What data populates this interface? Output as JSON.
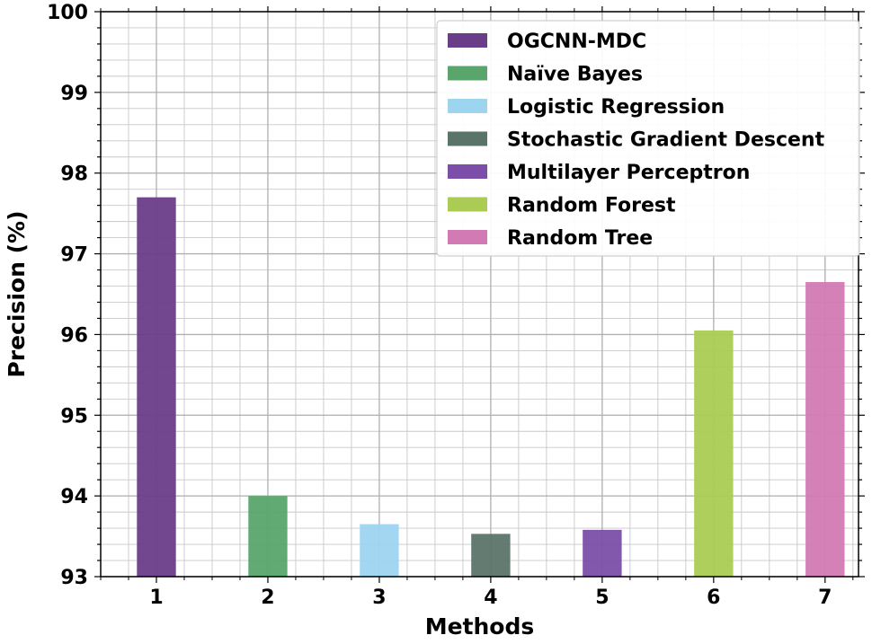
{
  "chart_data": {
    "type": "bar",
    "title": "",
    "xlabel": "Methods",
    "ylabel": "Precision (%)",
    "categories": [
      "1",
      "2",
      "3",
      "4",
      "5",
      "6",
      "7"
    ],
    "ylim": [
      93,
      100
    ],
    "yticks": [
      "93",
      "94",
      "95",
      "96",
      "97",
      "98",
      "99",
      "100"
    ],
    "grid": true,
    "legend_position": "top-right",
    "series": [
      {
        "name": "OGCNN-MDC",
        "category": "1",
        "value": 97.7,
        "color": "#6a3d8a"
      },
      {
        "name": "Naïve Bayes",
        "category": "2",
        "value": 94.0,
        "color": "#5aa56c"
      },
      {
        "name": "Logistic Regression",
        "category": "3",
        "value": 93.65,
        "color": "#9dd4f0"
      },
      {
        "name": "Stochastic Gradient Descent",
        "category": "4",
        "value": 93.53,
        "color": "#5b7469"
      },
      {
        "name": "Multilayer Perceptron",
        "category": "5",
        "value": 93.58,
        "color": "#7b4fa8"
      },
      {
        "name": "Random Forest",
        "category": "6",
        "value": 96.05,
        "color": "#abcc54"
      },
      {
        "name": "Random Tree",
        "category": "7",
        "value": 96.65,
        "color": "#d17ab3"
      }
    ]
  }
}
